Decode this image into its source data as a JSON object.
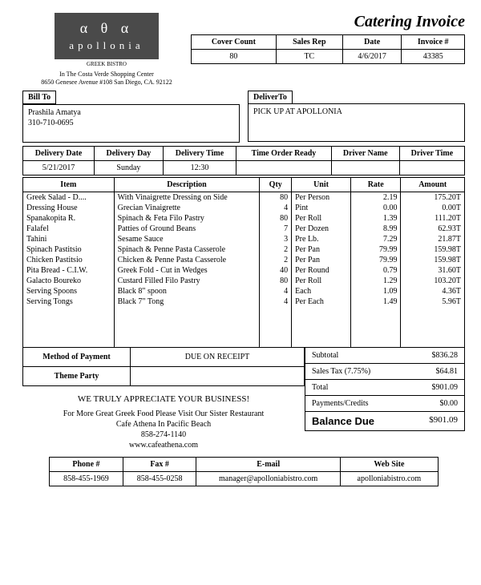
{
  "doc_title": "Catering Invoice",
  "logo": {
    "greek": "α θ α",
    "name": "apollonia",
    "tagline": "GREEK BISTRO"
  },
  "address": {
    "line1": "In The Costa Verde Shopping Center",
    "line2": "8650 Genesee Avenue #108 San Diego, CA. 92122"
  },
  "header": {
    "labels": {
      "cover": "Cover Count",
      "rep": "Sales Rep",
      "date": "Date",
      "inv": "Invoice #"
    },
    "cover": "80",
    "rep": "TC",
    "date": "4/6/2017",
    "inv": "43385"
  },
  "billto": {
    "label": "Bill To",
    "name": "Prashila Amatya",
    "phone": "310-710-0695"
  },
  "deliverto": {
    "label": "DeliverTo",
    "text": "PICK UP AT APOLLONIA"
  },
  "delivery": {
    "labels": {
      "date": "Delivery Date",
      "day": "Delivery Day",
      "time": "Delivery Time",
      "ready": "Time Order Ready",
      "driver": "Driver Name",
      "drivertime": "Driver Time"
    },
    "date": "5/21/2017",
    "day": "Sunday",
    "time": "12:30",
    "ready": "",
    "driver": "",
    "drivertime": ""
  },
  "item_headers": {
    "item": "Item",
    "desc": "Description",
    "qty": "Qty",
    "unit": "Unit",
    "rate": "Rate",
    "amount": "Amount"
  },
  "items": [
    {
      "item": "Greek Salad - D....",
      "desc": "With Vinaigrette Dressing on Side",
      "qty": "80",
      "unit": "Per Person",
      "rate": "2.19",
      "amount": "175.20T"
    },
    {
      "item": "Dressing House",
      "desc": "Grecian Vinaigrette",
      "qty": "4",
      "unit": "Pint",
      "rate": "0.00",
      "amount": "0.00T"
    },
    {
      "item": "Spanakopita R.",
      "desc": "Spinach & Feta Filo Pastry",
      "qty": "80",
      "unit": "Per Roll",
      "rate": "1.39",
      "amount": "111.20T"
    },
    {
      "item": "Falafel",
      "desc": "Patties of Ground Beans",
      "qty": "7",
      "unit": "Per Dozen",
      "rate": "8.99",
      "amount": "62.93T"
    },
    {
      "item": "Tahini",
      "desc": "Sesame Sauce",
      "qty": "3",
      "unit": "Pre Lb.",
      "rate": "7.29",
      "amount": "21.87T"
    },
    {
      "item": "Spinach Pastitsio",
      "desc": "Spinach & Penne Pasta Casserole",
      "qty": "2",
      "unit": "Per Pan",
      "rate": "79.99",
      "amount": "159.98T"
    },
    {
      "item": "Chicken Pastitsio",
      "desc": "Chicken & Penne Pasta Casserole",
      "qty": "2",
      "unit": "Per Pan",
      "rate": "79.99",
      "amount": "159.98T"
    },
    {
      "item": "Pita Bread - C.I.W.",
      "desc": "Greek Fold -  Cut in Wedges",
      "qty": "40",
      "unit": "Per Round",
      "rate": "0.79",
      "amount": "31.60T"
    },
    {
      "item": "Galacto Boureko",
      "desc": "Custard Filled Filo Pastry",
      "qty": "80",
      "unit": "Per Roll",
      "rate": "1.29",
      "amount": "103.20T"
    },
    {
      "item": "Serving Spoons",
      "desc": "Black 8\" spoon",
      "qty": "4",
      "unit": "Each",
      "rate": "1.09",
      "amount": "4.36T"
    },
    {
      "item": "Serving Tongs",
      "desc": "Black 7\" Tong",
      "qty": "4",
      "unit": "Per Each",
      "rate": "1.49",
      "amount": "5.96T"
    }
  ],
  "payment": {
    "label": "Method of Payment",
    "value": "DUE ON RECEIPT",
    "theme_label": "Theme Party",
    "theme_value": ""
  },
  "totals": {
    "subtotal_label": "Subtotal",
    "subtotal": "$836.28",
    "tax_label": "Sales Tax (7.75%)",
    "tax": "$64.81",
    "total_label": "Total",
    "total": "$901.09",
    "payments_label": "Payments/Credits",
    "payments": "$0.00",
    "balance_label": "Balance Due",
    "balance": "$901.09"
  },
  "messages": {
    "thanks": "WE TRULY APPRECIATE YOUR BUSINESS!",
    "sister1": "For More Great  Greek Food Please Visit Our Sister Restaurant",
    "sister2": "Cafe Athena In Pacific Beach",
    "sister_phone": "858-274-1140",
    "sister_web": "www.cafeathena.com"
  },
  "contact": {
    "labels": {
      "phone": "Phone #",
      "fax": "Fax #",
      "email": "E-mail",
      "web": "Web Site"
    },
    "phone": "858-455-1969",
    "fax": "858-455-0258",
    "email": "manager@apolloniabistro.com",
    "web": "apolloniabistro.com"
  },
  "style": {
    "page_bg": "#ffffff",
    "text": "#000000",
    "border": "#000000",
    "logo_bg": "#4a4a4a",
    "logo_fg": "#ffffff",
    "base_font_size": 10,
    "title_font_size": 20
  }
}
